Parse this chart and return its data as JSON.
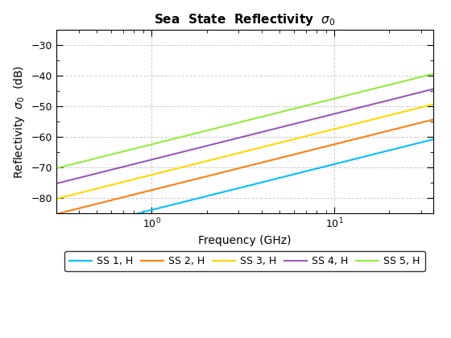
{
  "title": "Sea  State  Reflectivity  $\\sigma_0$",
  "xlabel": "Frequency (GHz)",
  "ylabel": "Reflectivity  $\\sigma_0$  (dB)",
  "xlim": [
    0.3,
    35
  ],
  "ylim": [
    -85,
    -25
  ],
  "freq_start": 0.3,
  "freq_end": 35,
  "num_points": 500,
  "series": [
    {
      "label": "SS 1, H",
      "color": "#00BFFF",
      "intercept": -84.0,
      "slope": 15.0
    },
    {
      "label": "SS 2, H",
      "color": "#FF7F0E",
      "intercept": -77.5,
      "slope": 15.0
    },
    {
      "label": "SS 3, H",
      "color": "#FFD700",
      "intercept": -72.5,
      "slope": 15.0
    },
    {
      "label": "SS 4, H",
      "color": "#9B59B6",
      "intercept": -67.5,
      "slope": 15.0
    },
    {
      "label": "SS 5, H",
      "color": "#90EE40",
      "intercept": -62.5,
      "slope": 15.0
    }
  ],
  "grid_color": "#CCCCCC",
  "background_color": "#FFFFFF",
  "title_fontsize": 11,
  "label_fontsize": 10,
  "tick_fontsize": 9,
  "legend_fontsize": 9
}
